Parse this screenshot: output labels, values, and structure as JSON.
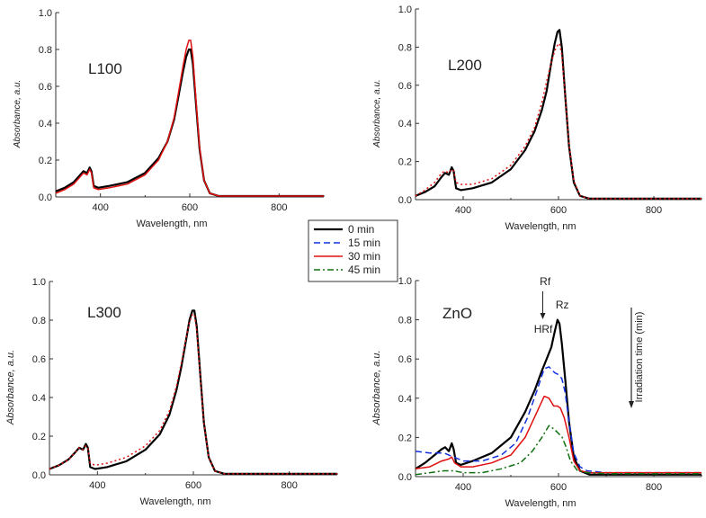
{
  "chart_data": [
    {
      "type": "line",
      "title": "L100",
      "xlabel": "Wavelength, nm",
      "ylabel": "Absorbance, a.u.",
      "xlim": [
        300,
        900
      ],
      "ylim": [
        0,
        1.0
      ],
      "xticks": [
        "400",
        "600",
        "800"
      ],
      "yticks": [
        "0.0",
        "0.2",
        "0.4",
        "0.6",
        "0.8",
        "1.0"
      ],
      "series": [
        {
          "name": "0 min",
          "color": "#000000",
          "dash": "solid",
          "x": [
            300,
            320,
            340,
            355,
            362,
            370,
            376,
            380,
            385,
            395,
            420,
            460,
            500,
            530,
            550,
            565,
            575,
            585,
            592,
            598,
            602,
            607,
            614,
            622,
            632,
            645,
            665,
            700,
            800,
            900
          ],
          "y": [
            0.03,
            0.05,
            0.08,
            0.12,
            0.14,
            0.13,
            0.16,
            0.14,
            0.06,
            0.05,
            0.06,
            0.08,
            0.13,
            0.21,
            0.3,
            0.42,
            0.55,
            0.68,
            0.76,
            0.8,
            0.8,
            0.72,
            0.5,
            0.26,
            0.09,
            0.02,
            0.005,
            0.005,
            0.005,
            0.005
          ]
        },
        {
          "name": "30 min",
          "color": "#e01010",
          "dash": "solid",
          "x": [
            300,
            320,
            340,
            355,
            362,
            370,
            376,
            380,
            385,
            395,
            420,
            460,
            500,
            530,
            550,
            565,
            575,
            585,
            592,
            598,
            602,
            607,
            614,
            622,
            632,
            645,
            665,
            700,
            800,
            900
          ],
          "y": [
            0.02,
            0.04,
            0.07,
            0.11,
            0.13,
            0.12,
            0.15,
            0.13,
            0.05,
            0.04,
            0.05,
            0.07,
            0.12,
            0.2,
            0.3,
            0.43,
            0.57,
            0.71,
            0.8,
            0.85,
            0.85,
            0.76,
            0.52,
            0.27,
            0.09,
            0.02,
            0.005,
            0.005,
            0.005,
            0.005
          ]
        }
      ]
    },
    {
      "type": "line",
      "title": "L200",
      "xlabel": "Wavelength, nm",
      "ylabel": "Absorbance, a.u.",
      "xlim": [
        300,
        900
      ],
      "ylim": [
        0,
        1.0
      ],
      "xticks": [
        "400",
        "600",
        "800"
      ],
      "yticks": [
        "0.0",
        "0.2",
        "0.4",
        "0.6",
        "0.8",
        "1.0"
      ],
      "series": [
        {
          "name": "0 min",
          "color": "#000000",
          "dash": "solid",
          "x": [
            300,
            320,
            340,
            355,
            362,
            370,
            376,
            380,
            385,
            395,
            420,
            460,
            500,
            530,
            550,
            565,
            575,
            585,
            592,
            598,
            602,
            607,
            614,
            622,
            632,
            645,
            665,
            700,
            800,
            900
          ],
          "y": [
            0.02,
            0.04,
            0.07,
            0.12,
            0.14,
            0.13,
            0.17,
            0.15,
            0.06,
            0.05,
            0.06,
            0.09,
            0.16,
            0.26,
            0.36,
            0.47,
            0.57,
            0.72,
            0.82,
            0.88,
            0.89,
            0.8,
            0.55,
            0.28,
            0.09,
            0.02,
            0.005,
            0.005,
            0.005,
            0.005
          ]
        },
        {
          "name": "30 min",
          "color": "#e01010",
          "dash": "dot",
          "x": [
            300,
            320,
            340,
            355,
            362,
            370,
            376,
            380,
            385,
            395,
            420,
            460,
            500,
            530,
            550,
            565,
            575,
            585,
            592,
            598,
            602,
            607,
            614,
            622,
            632,
            645,
            665,
            700,
            800,
            900
          ],
          "y": [
            0.02,
            0.05,
            0.09,
            0.14,
            0.15,
            0.14,
            0.16,
            0.15,
            0.09,
            0.08,
            0.08,
            0.11,
            0.18,
            0.28,
            0.38,
            0.51,
            0.62,
            0.72,
            0.78,
            0.81,
            0.82,
            0.76,
            0.55,
            0.29,
            0.1,
            0.02,
            0.005,
            0.005,
            0.005,
            0.005
          ]
        }
      ]
    },
    {
      "type": "line",
      "title": "L300",
      "xlabel": "Wavelength, nm",
      "ylabel": "Absorbance, a.u.",
      "xlim": [
        300,
        900
      ],
      "ylim": [
        0,
        1.0
      ],
      "xticks": [
        "400",
        "600",
        "800"
      ],
      "yticks": [
        "0.0",
        "0.2",
        "0.4",
        "0.6",
        "0.8",
        "1.0"
      ],
      "series": [
        {
          "name": "0 min",
          "color": "#000000",
          "dash": "solid",
          "x": [
            300,
            320,
            340,
            355,
            362,
            370,
            376,
            380,
            385,
            395,
            420,
            460,
            500,
            530,
            550,
            565,
            575,
            585,
            592,
            598,
            602,
            607,
            614,
            622,
            632,
            645,
            665,
            700,
            800,
            900
          ],
          "y": [
            0.03,
            0.05,
            0.08,
            0.12,
            0.14,
            0.13,
            0.16,
            0.14,
            0.04,
            0.03,
            0.04,
            0.07,
            0.13,
            0.21,
            0.31,
            0.44,
            0.56,
            0.7,
            0.8,
            0.85,
            0.85,
            0.77,
            0.53,
            0.27,
            0.09,
            0.02,
            0.005,
            0.005,
            0.005,
            0.005
          ]
        },
        {
          "name": "30 min",
          "color": "#e01010",
          "dash": "dot",
          "x": [
            300,
            320,
            340,
            355,
            362,
            370,
            376,
            380,
            385,
            395,
            420,
            460,
            500,
            530,
            550,
            565,
            575,
            585,
            592,
            598,
            602,
            607,
            614,
            622,
            632,
            645,
            665,
            700,
            800,
            900
          ],
          "y": [
            0.03,
            0.05,
            0.08,
            0.12,
            0.14,
            0.13,
            0.15,
            0.14,
            0.06,
            0.05,
            0.06,
            0.09,
            0.15,
            0.23,
            0.33,
            0.46,
            0.58,
            0.71,
            0.79,
            0.83,
            0.83,
            0.75,
            0.52,
            0.27,
            0.09,
            0.02,
            0.005,
            0.005,
            0.005,
            0.005
          ]
        }
      ]
    },
    {
      "type": "line",
      "title": "ZnO",
      "xlabel": "Wavelength, nm",
      "ylabel": "Absorbance, a.u.",
      "xlim": [
        300,
        900
      ],
      "ylim": [
        0,
        1.0
      ],
      "xticks": [
        "400",
        "600",
        "800"
      ],
      "yticks": [
        "0.0",
        "0.2",
        "0.4",
        "0.6",
        "0.8",
        "1.0"
      ],
      "annotations": [
        "Rf",
        "HRf",
        "Rz"
      ],
      "side_label": "Irradiation time (min)",
      "series": [
        {
          "name": "0 min",
          "color": "#000000",
          "dash": "solid",
          "x": [
            300,
            320,
            340,
            355,
            362,
            370,
            376,
            380,
            385,
            395,
            420,
            460,
            500,
            530,
            550,
            565,
            575,
            585,
            592,
            598,
            602,
            607,
            614,
            622,
            632,
            645,
            665,
            700,
            800,
            900
          ],
          "y": [
            0.04,
            0.07,
            0.11,
            0.14,
            0.15,
            0.13,
            0.17,
            0.14,
            0.07,
            0.06,
            0.08,
            0.12,
            0.2,
            0.33,
            0.44,
            0.54,
            0.6,
            0.66,
            0.74,
            0.8,
            0.78,
            0.68,
            0.5,
            0.28,
            0.1,
            0.03,
            0.01,
            0.01,
            0.01,
            0.01
          ]
        },
        {
          "name": "15 min",
          "color": "#1030e0",
          "dash": "dash",
          "x": [
            300,
            330,
            360,
            380,
            400,
            440,
            480,
            510,
            535,
            555,
            570,
            580,
            592,
            600,
            607,
            614,
            622,
            632,
            645,
            660,
            700,
            800,
            900
          ],
          "y": [
            0.13,
            0.12,
            0.12,
            0.1,
            0.08,
            0.08,
            0.11,
            0.17,
            0.3,
            0.44,
            0.55,
            0.56,
            0.53,
            0.52,
            0.5,
            0.43,
            0.28,
            0.12,
            0.05,
            0.03,
            0.02,
            0.02,
            0.02
          ]
        },
        {
          "name": "30 min",
          "color": "#e01010",
          "dash": "solid",
          "x": [
            300,
            330,
            355,
            370,
            376,
            382,
            395,
            420,
            460,
            500,
            530,
            555,
            570,
            580,
            590,
            598,
            604,
            612,
            622,
            632,
            645,
            665,
            700,
            800,
            900
          ],
          "y": [
            0.04,
            0.05,
            0.08,
            0.09,
            0.1,
            0.07,
            0.05,
            0.05,
            0.07,
            0.11,
            0.2,
            0.33,
            0.41,
            0.4,
            0.36,
            0.36,
            0.35,
            0.3,
            0.2,
            0.08,
            0.03,
            0.02,
            0.02,
            0.02,
            0.02
          ]
        },
        {
          "name": "45 min",
          "color": "#107010",
          "dash": "dashdot",
          "x": [
            300,
            330,
            360,
            380,
            400,
            440,
            480,
            520,
            545,
            565,
            580,
            592,
            600,
            608,
            616,
            625,
            640,
            660,
            700,
            800,
            900
          ],
          "y": [
            0.01,
            0.02,
            0.03,
            0.03,
            0.02,
            0.02,
            0.04,
            0.07,
            0.13,
            0.2,
            0.26,
            0.24,
            0.22,
            0.2,
            0.15,
            0.08,
            0.03,
            0.02,
            0.015,
            0.015,
            0.015
          ]
        }
      ]
    }
  ],
  "legend": {
    "placement": "center",
    "entries": [
      {
        "label": "0 min",
        "color": "#000000",
        "dash": "solid"
      },
      {
        "label": "15 min",
        "color": "#1030e0",
        "dash": "dash"
      },
      {
        "label": "30 min",
        "color": "#e01010",
        "dash": "solid"
      },
      {
        "label": "45 min",
        "color": "#107010",
        "dash": "dashdot"
      }
    ]
  }
}
